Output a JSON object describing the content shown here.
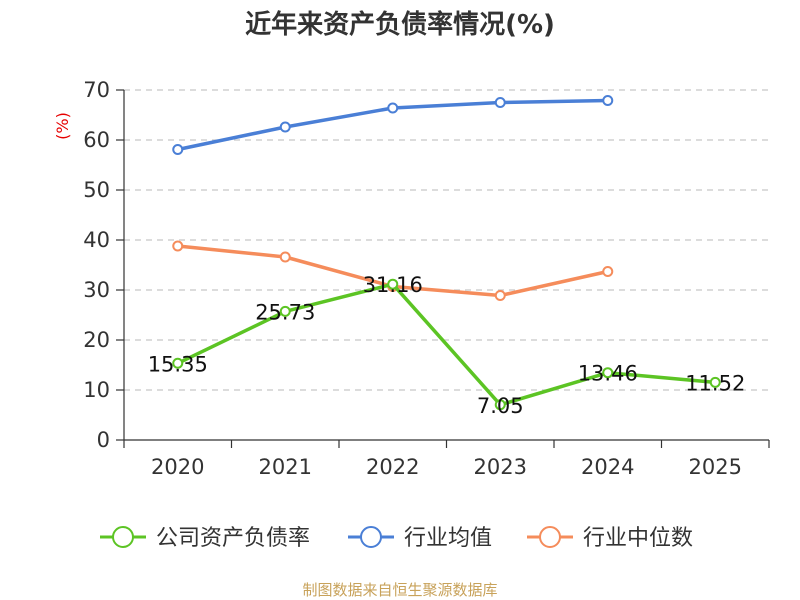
{
  "chart_data": {
    "type": "line",
    "title": "近年来资产负债率情况(%)",
    "ylabel": "(%)",
    "categories": [
      "2020",
      "2021",
      "2022",
      "2023",
      "2024",
      "2025"
    ],
    "ylim": [
      0,
      70
    ],
    "yticks": [
      0,
      10,
      20,
      30,
      40,
      50,
      60,
      70
    ],
    "grid": true,
    "legend_position": "bottom",
    "series": [
      {
        "name": "公司资产负债率",
        "color": "#5cc424",
        "values": [
          15.35,
          25.73,
          31.16,
          7.05,
          13.46,
          11.52
        ],
        "labels": [
          "15.35",
          "25.73",
          "31.16",
          "7.05",
          "13.46",
          "11.52"
        ]
      },
      {
        "name": "行业均值",
        "color": "#4a7fd6",
        "values": [
          58.1,
          62.6,
          66.4,
          67.5,
          67.9,
          null
        ]
      },
      {
        "name": "行业中位数",
        "color": "#f58c5b",
        "values": [
          38.8,
          36.6,
          30.7,
          28.9,
          33.7,
          null
        ]
      }
    ]
  },
  "source": "制图数据来自恒生聚源数据库"
}
